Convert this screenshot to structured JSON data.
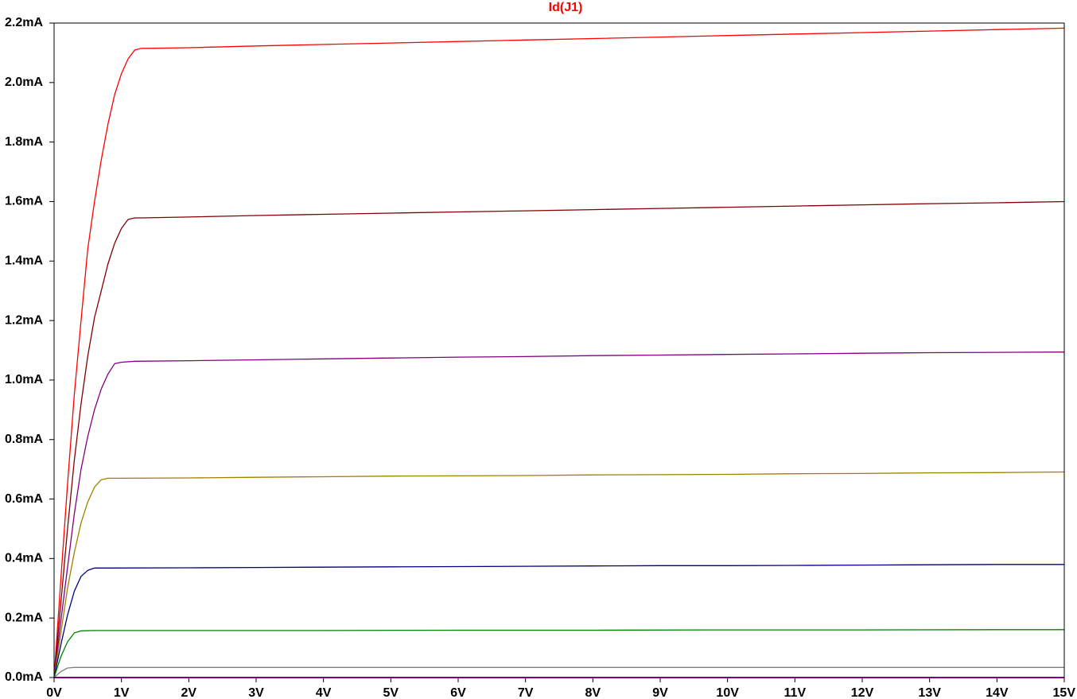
{
  "chart_data": {
    "type": "line",
    "title": "Id(J1)",
    "title_color": "#ff0000",
    "xlabel": "",
    "ylabel": "",
    "xlim": [
      0,
      15
    ],
    "ylim": [
      0,
      2.2
    ],
    "grid": false,
    "legend": "none",
    "x_ticks": [
      0,
      1,
      2,
      3,
      4,
      5,
      6,
      7,
      8,
      9,
      10,
      11,
      12,
      13,
      14,
      15
    ],
    "x_tick_labels": [
      "0V",
      "1V",
      "2V",
      "3V",
      "4V",
      "5V",
      "6V",
      "7V",
      "8V",
      "9V",
      "10V",
      "11V",
      "12V",
      "13V",
      "14V",
      "15V"
    ],
    "y_ticks": [
      0.0,
      0.2,
      0.4,
      0.6,
      0.8,
      1.0,
      1.2,
      1.4,
      1.6,
      1.8,
      2.0,
      2.2
    ],
    "y_tick_labels": [
      "0.0mA",
      "0.2mA",
      "0.4mA",
      "0.6mA",
      "0.8mA",
      "1.0mA",
      "1.2mA",
      "1.4mA",
      "1.6mA",
      "1.8mA",
      "2.0mA",
      "2.2mA"
    ],
    "series": [
      {
        "color": "#ff0000",
        "x": [
          0,
          0.1,
          0.2,
          0.3,
          0.4,
          0.5,
          0.6,
          0.7,
          0.8,
          0.9,
          1.0,
          1.1,
          1.2,
          1.3,
          1.4,
          2,
          3,
          4,
          5,
          6,
          7,
          8,
          9,
          10,
          11,
          12,
          13,
          14,
          15
        ],
        "y": [
          0,
          0.33,
          0.65,
          0.95,
          1.2,
          1.44,
          1.6,
          1.74,
          1.86,
          1.96,
          2.03,
          2.08,
          2.11,
          2.115,
          2.115,
          2.117,
          2.123,
          2.128,
          2.133,
          2.138,
          2.143,
          2.148,
          2.153,
          2.158,
          2.163,
          2.168,
          2.173,
          2.178,
          2.183
        ]
      },
      {
        "color": "#800000",
        "x": [
          0,
          0.1,
          0.2,
          0.3,
          0.4,
          0.5,
          0.6,
          0.7,
          0.8,
          0.9,
          1.0,
          1.1,
          1.2,
          1.3,
          2,
          3,
          4,
          5,
          6,
          7,
          8,
          9,
          10,
          11,
          12,
          13,
          14,
          15
        ],
        "y": [
          0,
          0.25,
          0.5,
          0.73,
          0.92,
          1.08,
          1.21,
          1.3,
          1.39,
          1.46,
          1.51,
          1.54,
          1.545,
          1.545,
          1.548,
          1.553,
          1.557,
          1.561,
          1.565,
          1.569,
          1.573,
          1.577,
          1.581,
          1.585,
          1.589,
          1.593,
          1.596,
          1.6
        ]
      },
      {
        "color": "#800080",
        "x": [
          0,
          0.1,
          0.2,
          0.3,
          0.4,
          0.5,
          0.6,
          0.7,
          0.8,
          0.9,
          1.0,
          1.2,
          2,
          3,
          4,
          5,
          6,
          7,
          8,
          9,
          10,
          11,
          12,
          13,
          14,
          15
        ],
        "y": [
          0,
          0.19,
          0.37,
          0.55,
          0.7,
          0.81,
          0.9,
          0.97,
          1.02,
          1.055,
          1.06,
          1.063,
          1.065,
          1.068,
          1.071,
          1.074,
          1.077,
          1.079,
          1.082,
          1.084,
          1.086,
          1.088,
          1.09,
          1.092,
          1.093,
          1.094
        ]
      },
      {
        "color": "#a08000",
        "x": [
          0,
          0.1,
          0.2,
          0.3,
          0.4,
          0.5,
          0.6,
          0.7,
          0.8,
          1.0,
          2,
          3,
          4,
          5,
          6,
          7,
          8,
          9,
          10,
          11,
          12,
          13,
          14,
          15
        ],
        "y": [
          0,
          0.15,
          0.3,
          0.42,
          0.52,
          0.59,
          0.64,
          0.665,
          0.67,
          0.67,
          0.671,
          0.673,
          0.675,
          0.677,
          0.678,
          0.679,
          0.681,
          0.682,
          0.683,
          0.685,
          0.686,
          0.688,
          0.689,
          0.691
        ]
      },
      {
        "color": "#000080",
        "x": [
          0,
          0.1,
          0.2,
          0.3,
          0.4,
          0.5,
          0.6,
          0.8,
          2,
          3,
          4,
          5,
          6,
          7,
          8,
          9,
          10,
          11,
          12,
          13,
          14,
          15
        ],
        "y": [
          0,
          0.11,
          0.21,
          0.29,
          0.34,
          0.36,
          0.368,
          0.368,
          0.369,
          0.37,
          0.371,
          0.372,
          0.373,
          0.374,
          0.375,
          0.376,
          0.376,
          0.377,
          0.378,
          0.379,
          0.38,
          0.38
        ]
      },
      {
        "color": "#008000",
        "x": [
          0,
          0.1,
          0.2,
          0.3,
          0.4,
          0.6,
          2,
          4,
          6,
          8,
          10,
          12,
          14,
          15
        ],
        "y": [
          0,
          0.07,
          0.12,
          0.15,
          0.157,
          0.158,
          0.158,
          0.158,
          0.159,
          0.159,
          0.16,
          0.16,
          0.161,
          0.161
        ]
      },
      {
        "color": "#808080",
        "x": [
          0,
          0.1,
          0.2,
          0.3,
          1,
          5,
          10,
          15
        ],
        "y": [
          0,
          0.02,
          0.032,
          0.034,
          0.034,
          0.034,
          0.034,
          0.034
        ]
      },
      {
        "color": "#ff00ff",
        "x": [
          0,
          15
        ],
        "y": [
          0,
          0
        ]
      }
    ]
  }
}
